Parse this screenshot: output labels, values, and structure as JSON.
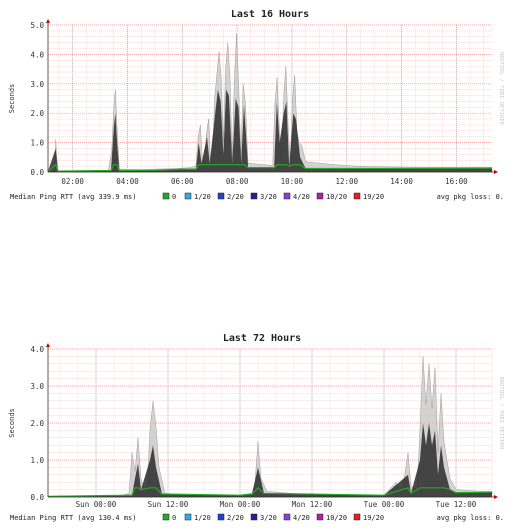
{
  "chart_data": [
    {
      "type": "area",
      "title": "Last 16 Hours",
      "ylabel": "Seconds",
      "ylim": [
        0,
        5
      ],
      "y_ticks": [
        "0.0",
        "1.0",
        "2.0",
        "3.0",
        "4.0",
        "5.0"
      ],
      "xlim": [
        1.1,
        17.3
      ],
      "x_ticks": [
        {
          "x": 2,
          "label": "02:00"
        },
        {
          "x": 4,
          "label": "04:00"
        },
        {
          "x": 6,
          "label": "06:00"
        },
        {
          "x": 8,
          "label": "08:00"
        },
        {
          "x": 10,
          "label": "10:00"
        },
        {
          "x": 12,
          "label": "12:00"
        },
        {
          "x": 14,
          "label": "14:00"
        },
        {
          "x": 16,
          "label": "16:00"
        }
      ],
      "grid": true,
      "watermark": "RRDTOOL / TOBI OETIKER",
      "legend": {
        "median_label": "Median Ping RTT (avg 339.9 ms)",
        "loss_label": "avg pkg loss: 0.",
        "entries": [
          {
            "label": "0",
            "color": "#22aa22"
          },
          {
            "label": "1/20",
            "color": "#33aadd"
          },
          {
            "label": "2/20",
            "color": "#2244cc"
          },
          {
            "label": "3/20",
            "color": "#222288"
          },
          {
            "label": "4/20",
            "color": "#8844cc"
          },
          {
            "label": "10/20",
            "color": "#aa22aa"
          },
          {
            "label": "19/20",
            "color": "#dd2222"
          }
        ]
      },
      "series": [
        {
          "values": [
            [
              1.1,
              0.02
            ],
            [
              1.35,
              0.03
            ],
            [
              1.38,
              1.1
            ],
            [
              1.42,
              0.5
            ],
            [
              1.46,
              0.04
            ],
            [
              2.0,
              0.04
            ],
            [
              3.0,
              0.05
            ],
            [
              3.3,
              0.06
            ],
            [
              3.42,
              0.7
            ],
            [
              3.5,
              2.2
            ],
            [
              3.56,
              2.8
            ],
            [
              3.62,
              1.5
            ],
            [
              3.7,
              0.1
            ],
            [
              4.5,
              0.08
            ],
            [
              5.0,
              0.1
            ],
            [
              5.8,
              0.12
            ],
            [
              6.3,
              0.15
            ],
            [
              6.5,
              0.2
            ],
            [
              6.58,
              1.2
            ],
            [
              6.66,
              1.6
            ],
            [
              6.72,
              0.6
            ],
            [
              6.8,
              0.2
            ],
            [
              6.88,
              1.3
            ],
            [
              6.96,
              1.8
            ],
            [
              7.02,
              0.5
            ],
            [
              7.1,
              0.25
            ],
            [
              7.18,
              2.5
            ],
            [
              7.26,
              3.3
            ],
            [
              7.34,
              4.1
            ],
            [
              7.42,
              3.2
            ],
            [
              7.5,
              1.0
            ],
            [
              7.58,
              3.5
            ],
            [
              7.66,
              4.4
            ],
            [
              7.74,
              3.2
            ],
            [
              7.82,
              0.4
            ],
            [
              7.9,
              3.2
            ],
            [
              7.98,
              4.7
            ],
            [
              8.06,
              2.8
            ],
            [
              8.14,
              0.5
            ],
            [
              8.22,
              3.0
            ],
            [
              8.3,
              2.4
            ],
            [
              8.4,
              0.3
            ],
            [
              9.0,
              0.25
            ],
            [
              9.3,
              0.22
            ],
            [
              9.38,
              2.3
            ],
            [
              9.46,
              3.2
            ],
            [
              9.54,
              1.5
            ],
            [
              9.62,
              0.3
            ],
            [
              9.7,
              2.6
            ],
            [
              9.78,
              3.6
            ],
            [
              9.86,
              1.6
            ],
            [
              9.94,
              0.3
            ],
            [
              10.02,
              2.5
            ],
            [
              10.1,
              3.3
            ],
            [
              10.18,
              1.4
            ],
            [
              10.26,
              1.0
            ],
            [
              10.36,
              0.9
            ],
            [
              10.5,
              0.35
            ],
            [
              11.0,
              0.3
            ],
            [
              11.6,
              0.25
            ],
            [
              12.3,
              0.2
            ],
            [
              13.0,
              0.18
            ],
            [
              14.0,
              0.17
            ],
            [
              15.0,
              0.16
            ],
            [
              16.0,
              0.16
            ],
            [
              17.3,
              0.16
            ]
          ]
        },
        {
          "name": "median",
          "values": [
            [
              1.1,
              0.02
            ],
            [
              1.38,
              0.8
            ],
            [
              1.46,
              0.03
            ],
            [
              3.4,
              0.05
            ],
            [
              3.5,
              1.5
            ],
            [
              3.56,
              2.0
            ],
            [
              3.62,
              1.0
            ],
            [
              3.7,
              0.05
            ],
            [
              5.0,
              0.06
            ],
            [
              6.0,
              0.1
            ],
            [
              6.5,
              0.1
            ],
            [
              6.6,
              1.0
            ],
            [
              6.7,
              0.3
            ],
            [
              6.9,
              1.2
            ],
            [
              7.0,
              0.3
            ],
            [
              7.2,
              2.0
            ],
            [
              7.3,
              2.8
            ],
            [
              7.4,
              2.4
            ],
            [
              7.5,
              0.6
            ],
            [
              7.6,
              2.8
            ],
            [
              7.7,
              2.6
            ],
            [
              7.82,
              0.3
            ],
            [
              7.95,
              2.5
            ],
            [
              8.05,
              2.2
            ],
            [
              8.15,
              0.3
            ],
            [
              8.25,
              2.3
            ],
            [
              8.4,
              0.15
            ],
            [
              9.35,
              0.15
            ],
            [
              9.45,
              2.4
            ],
            [
              9.55,
              1.0
            ],
            [
              9.7,
              2.0
            ],
            [
              9.8,
              2.4
            ],
            [
              9.9,
              0.2
            ],
            [
              10.05,
              2.0
            ],
            [
              10.15,
              1.8
            ],
            [
              10.3,
              0.5
            ],
            [
              10.5,
              0.12
            ],
            [
              12.0,
              0.12
            ],
            [
              17.3,
              0.13
            ]
          ]
        }
      ]
    },
    {
      "type": "area",
      "title": "Last 72 Hours",
      "ylabel": "Seconds",
      "ylim": [
        0,
        4
      ],
      "y_ticks": [
        "0.0",
        "1.0",
        "2.0",
        "3.0",
        "4.0"
      ],
      "xlim": [
        16,
        90
      ],
      "x_ticks": [
        {
          "x": 24,
          "label": "Sun 00:00"
        },
        {
          "x": 36,
          "label": "Sun 12:00"
        },
        {
          "x": 48,
          "label": "Mon 00:00"
        },
        {
          "x": 60,
          "label": "Mon 12:00"
        },
        {
          "x": 72,
          "label": "Tue 00:00"
        },
        {
          "x": 84,
          "label": "Tue 12:00"
        }
      ],
      "grid": true,
      "watermark": "RRDTOOL / TOBI OETIKER",
      "legend": {
        "median_label": "Median Ping RTT (avg 130.4 ms)",
        "loss_label": "avg pkg loss: 0.",
        "entries": [
          {
            "label": "0",
            "color": "#22aa22"
          },
          {
            "label": "1/20",
            "color": "#33aadd"
          },
          {
            "label": "2/20",
            "color": "#2244cc"
          },
          {
            "label": "3/20",
            "color": "#222288"
          },
          {
            "label": "4/20",
            "color": "#8844cc"
          },
          {
            "label": "10/20",
            "color": "#aa22aa"
          },
          {
            "label": "19/20",
            "color": "#dd2222"
          }
        ]
      },
      "series": [
        {
          "values": [
            [
              16,
              0.02
            ],
            [
              24,
              0.03
            ],
            [
              28,
              0.03
            ],
            [
              29.5,
              0.1
            ],
            [
              30,
              1.2
            ],
            [
              30.5,
              0.7
            ],
            [
              31,
              1.6
            ],
            [
              31.5,
              0.5
            ],
            [
              32,
              0.2
            ],
            [
              32.5,
              0.3
            ],
            [
              33,
              1.8
            ],
            [
              33.5,
              2.6
            ],
            [
              34,
              1.9
            ],
            [
              34.5,
              0.8
            ],
            [
              35.5,
              0.1
            ],
            [
              40,
              0.05
            ],
            [
              48,
              0.05
            ],
            [
              50,
              0.1
            ],
            [
              50.5,
              0.4
            ],
            [
              51,
              1.5
            ],
            [
              51.5,
              0.5
            ],
            [
              52.5,
              0.15
            ],
            [
              58,
              0.08
            ],
            [
              65,
              0.05
            ],
            [
              72,
              0.05
            ],
            [
              74,
              0.4
            ],
            [
              75,
              0.1
            ],
            [
              76,
              1.2
            ],
            [
              76.5,
              0.3
            ],
            [
              77.5,
              0.2
            ],
            [
              78,
              1.8
            ],
            [
              78.5,
              3.8
            ],
            [
              79,
              2.5
            ],
            [
              79.5,
              3.6
            ],
            [
              80,
              2.4
            ],
            [
              80.5,
              3.5
            ],
            [
              81,
              1.2
            ],
            [
              81.5,
              2.8
            ],
            [
              82,
              1.5
            ],
            [
              83,
              0.5
            ],
            [
              84,
              0.2
            ],
            [
              88,
              0.15
            ],
            [
              90,
              0.15
            ]
          ]
        },
        {
          "name": "median",
          "values": [
            [
              16,
              0.02
            ],
            [
              30,
              0.05
            ],
            [
              30.5,
              0.5
            ],
            [
              31,
              0.9
            ],
            [
              31.5,
              0.2
            ],
            [
              33,
              1.0
            ],
            [
              33.5,
              1.4
            ],
            [
              34,
              0.8
            ],
            [
              35,
              0.08
            ],
            [
              48,
              0.05
            ],
            [
              50,
              0.08
            ],
            [
              51,
              0.8
            ],
            [
              52,
              0.1
            ],
            [
              72,
              0.05
            ],
            [
              76,
              0.6
            ],
            [
              76.5,
              0.1
            ],
            [
              78,
              1.0
            ],
            [
              78.5,
              2.0
            ],
            [
              79,
              1.4
            ],
            [
              79.5,
              2.0
            ],
            [
              80,
              1.4
            ],
            [
              80.5,
              1.8
            ],
            [
              81,
              0.6
            ],
            [
              81.5,
              1.4
            ],
            [
              82,
              0.8
            ],
            [
              83,
              0.2
            ],
            [
              84,
              0.12
            ],
            [
              90,
              0.13
            ]
          ]
        }
      ]
    }
  ]
}
